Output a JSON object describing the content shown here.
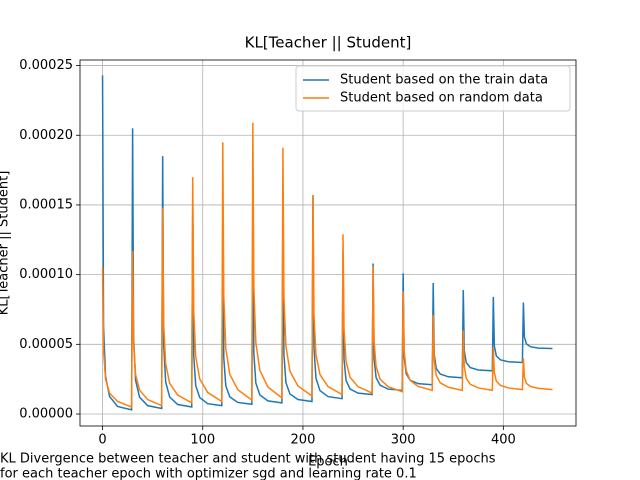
{
  "chart_data": {
    "type": "line",
    "title": "KL[Teacher || Student]",
    "x_label": "Epoch",
    "y_label": "KL[Teacher || Student]",
    "caption": [
      "KL Divergence between teacher and student with student having 15 epochs",
      " for each teacher epoch with optimizer sgd  and learning rate 0.1"
    ],
    "grid": true,
    "legend": "upper right",
    "xlim": [
      -22.5,
      472.5
    ],
    "ylim": [
      -8.6e-06,
      0.000254
    ],
    "xticks": [
      0,
      100,
      200,
      300,
      400
    ],
    "yticks": [
      {
        "value": 0,
        "label": "0.00000"
      },
      {
        "value": 5e-05,
        "label": "0.00005"
      },
      {
        "value": 0.0001,
        "label": "0.00010"
      },
      {
        "value": 0.00015,
        "label": "0.00015"
      },
      {
        "value": 0.0002,
        "label": "0.00020"
      },
      {
        "value": 0.00025,
        "label": "0.00025"
      }
    ],
    "x": [
      0,
      1,
      3,
      7,
      15,
      29,
      30,
      31,
      33,
      37,
      45,
      59,
      60,
      61,
      63,
      67,
      75,
      89,
      90,
      91,
      93,
      97,
      105,
      119,
      120,
      121,
      123,
      127,
      135,
      149,
      150,
      151,
      153,
      157,
      165,
      179,
      180,
      181,
      183,
      187,
      195,
      209,
      210,
      211,
      213,
      217,
      225,
      239,
      240,
      241,
      243,
      247,
      255,
      269,
      270,
      271,
      273,
      277,
      285,
      299,
      300,
      301,
      303,
      307,
      315,
      329,
      330,
      331,
      333,
      337,
      345,
      359,
      360,
      361,
      363,
      367,
      375,
      389,
      390,
      391,
      393,
      397,
      405,
      419,
      420,
      421,
      423,
      427,
      435,
      449
    ],
    "series": [
      {
        "name": "Student based on the train data",
        "color": "#1f77b4",
        "values": [
          0.000243,
          6.3e-05,
          2.7e-05,
          1.26e-05,
          5.4e-06,
          3e-06,
          0.000205,
          5.43e-05,
          2.41e-05,
          1.2e-05,
          6e-06,
          4e-06,
          0.000185,
          5e-05,
          2.3e-05,
          1.22e-05,
          6.8e-06,
          5e-06,
          0.00015,
          4.2e-05,
          2.04e-05,
          1.18e-05,
          7.4e-06,
          6e-06,
          0.00014,
          4.03e-05,
          2.03e-05,
          1.23e-05,
          8.3e-06,
          7e-06,
          0.00015,
          4.35e-05,
          2.22e-05,
          1.37e-05,
          9.4e-06,
          8e-06,
          0.000145,
          4.3e-05,
          2.26e-05,
          1.44e-05,
          1.04e-05,
          9e-06,
          0.000157,
          4.75e-05,
          2.56e-05,
          1.68e-05,
          1.25e-05,
          1.1e-05,
          0.000115,
          3.93e-05,
          2.41e-05,
          1.8e-05,
          1.5e-05,
          1.4e-05,
          0.000108,
          3.98e-05,
          2.61e-05,
          2.06e-05,
          1.79e-05,
          1.7e-05,
          0.000101,
          4.1e-05,
          2.9e-05,
          2.42e-05,
          2.18e-05,
          2.1e-05,
          9.4e-05,
          4.3e-05,
          3.28e-05,
          2.87e-05,
          2.67e-05,
          2.6e-05,
          8.9e-05,
          4.55e-05,
          3.68e-05,
          3.33e-05,
          3.16e-05,
          3.1e-05,
          8.4e-05,
          4.88e-05,
          4.17e-05,
          3.89e-05,
          3.75e-05,
          3.7e-05,
          8e-05,
          5.53e-05,
          5.03e-05,
          4.83e-05,
          4.73e-05,
          4.7e-05
        ]
      },
      {
        "name": "Student based on random data",
        "color": "#ff7f0e",
        "values": [
          0.000105,
          4.5e-05,
          2.5e-05,
          1.5e-05,
          9e-06,
          5e-06,
          0.000117,
          5.04e-05,
          2.82e-05,
          1.71e-05,
          1.04e-05,
          6e-06,
          0.000148,
          6.4e-05,
          3.6e-05,
          2.2e-05,
          1.36e-05,
          8e-06,
          0.00017,
          7.34e-05,
          4.12e-05,
          2.51e-05,
          1.54e-05,
          9e-06,
          0.000195,
          8.4e-05,
          4.7e-05,
          2.85e-05,
          1.74e-05,
          1e-05,
          0.000209,
          9.07e-05,
          5.11e-05,
          3.13e-05,
          1.94e-05,
          1.15e-05,
          0.000191,
          8.42e-05,
          4.86e-05,
          3.08e-05,
          2.01e-05,
          1.3e-05,
          0.000157,
          7.12e-05,
          4.26e-05,
          2.83e-05,
          1.97e-05,
          1.4e-05,
          0.000129,
          6.06e-05,
          3.78e-05,
          2.64e-05,
          1.96e-05,
          1.5e-05,
          0.000106,
          5.2e-05,
          3.4e-05,
          2.5e-05,
          1.96e-05,
          1.6e-05,
          8.8e-05,
          4.54e-05,
          3.12e-05,
          2.41e-05,
          1.98e-05,
          1.7e-05,
          7.1e-05,
          3.86e-05,
          2.78e-05,
          2.24e-05,
          1.92e-05,
          1.7e-05,
          6e-05,
          3.42e-05,
          2.56e-05,
          2.13e-05,
          1.87e-05,
          1.7e-05,
          4.8e-05,
          2.97e-05,
          2.36e-05,
          2.06e-05,
          1.87e-05,
          1.75e-05,
          4e-05,
          2.65e-05,
          2.2e-05,
          1.98e-05,
          1.84e-05,
          1.75e-05
        ]
      }
    ]
  }
}
